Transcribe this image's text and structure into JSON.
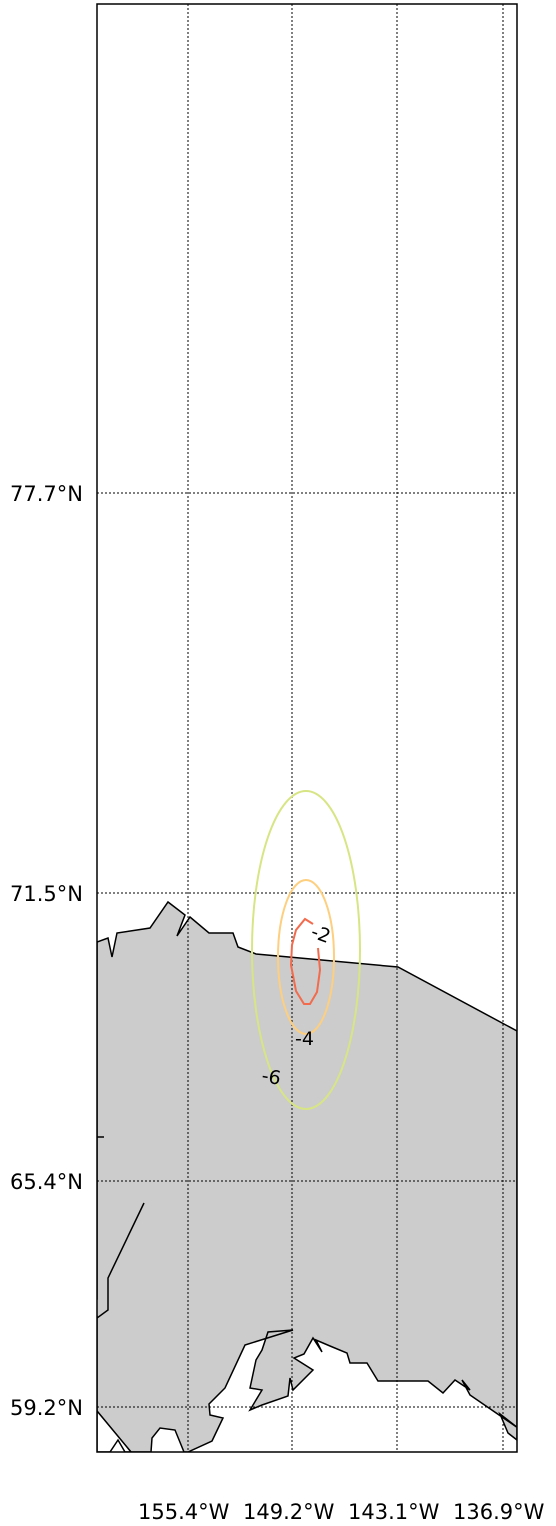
{
  "map": {
    "lat_labels": [
      "77.7°N",
      "71.5°N",
      "65.4°N",
      "59.2°N"
    ],
    "lon_labels": [
      "155.4°W",
      "149.2°W",
      "143.1°W",
      "136.9°W"
    ],
    "land_color": "#cccccc",
    "coastline_color": "#000000",
    "grid_style": "dotted",
    "contours": [
      {
        "level": "-2",
        "color": "#f26b4d"
      },
      {
        "level": "-4",
        "color": "#fdcf7f"
      },
      {
        "level": "-6",
        "color": "#d8e585"
      }
    ]
  }
}
